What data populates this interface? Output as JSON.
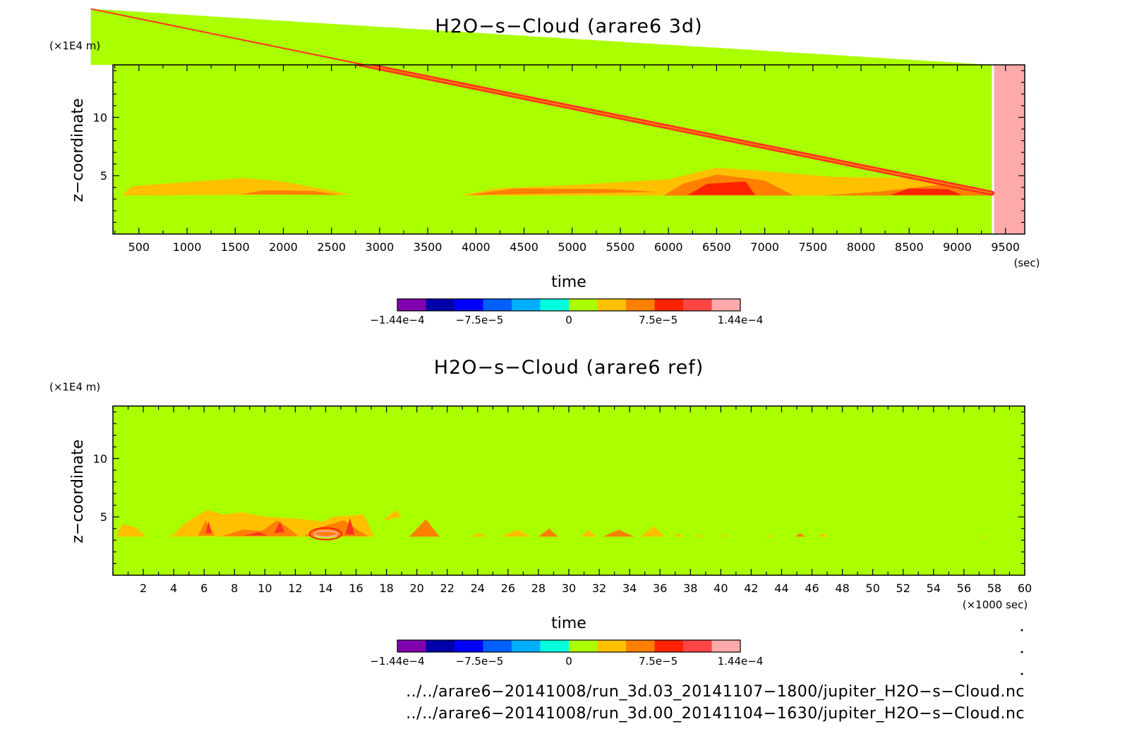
{
  "chart_data": [
    {
      "type": "heatmap",
      "title": "H2O−s−Cloud (arare6 3d)",
      "xlabel": "time",
      "x_unit": "(sec)",
      "ylabel": "z−coordinate",
      "y_unit": "(×1E4 m)",
      "xlim": [
        230,
        9700
      ],
      "ylim": [
        0,
        14.5
      ],
      "x_ticks": [
        500,
        1000,
        1500,
        2000,
        2500,
        3000,
        3500,
        4000,
        4500,
        5000,
        5500,
        6000,
        6500,
        7000,
        7500,
        8000,
        8500,
        9000,
        9500
      ],
      "x_tick_labels": [
        "500",
        "1000",
        "1500",
        "2000",
        "2500",
        "3000",
        "3500",
        "4000",
        "4500",
        "5000",
        "5500",
        "6000",
        "6500",
        "7000",
        "7500",
        "8000",
        "8500",
        "9000",
        "9500"
      ],
      "y_ticks": [
        5,
        10
      ],
      "y_tick_labels": [
        "5",
        "10"
      ],
      "background_color": "#aaff00",
      "missing_region": {
        "x_from": 9370,
        "x_to": 9700,
        "color": "#ffaaaa"
      },
      "streak": {
        "from": [
          0,
          19.3
        ],
        "to": [
          9360,
          3.5
        ],
        "color": "#ff3322"
      },
      "patches": [
        {
          "color": "#ffc000",
          "points": [
            [
              320,
              3.3
            ],
            [
              430,
              4.1
            ],
            [
              900,
              4.4
            ],
            [
              1600,
              4.8
            ],
            [
              2000,
              4.5
            ],
            [
              2700,
              3.4
            ]
          ]
        },
        {
          "color": "#ff7f00",
          "points": [
            [
              1550,
              3.4
            ],
            [
              1800,
              3.75
            ],
            [
              2300,
              3.7
            ],
            [
              2600,
              3.35
            ]
          ]
        },
        {
          "color": "#ffc000",
          "points": [
            [
              3850,
              3.3
            ],
            [
              4200,
              3.9
            ],
            [
              5000,
              4.2
            ],
            [
              6000,
              4.7
            ],
            [
              6500,
              5.7
            ],
            [
              7000,
              5.4
            ],
            [
              7700,
              4.9
            ],
            [
              8600,
              4.8
            ],
            [
              9380,
              3.3
            ]
          ]
        },
        {
          "color": "#ff7f00",
          "points": [
            [
              3900,
              3.35
            ],
            [
              4400,
              3.9
            ],
            [
              5400,
              3.85
            ],
            [
              5900,
              3.6
            ]
          ]
        },
        {
          "color": "#ff7f00",
          "points": [
            [
              5950,
              3.3
            ],
            [
              6150,
              4.3
            ],
            [
              6500,
              5.1
            ],
            [
              7000,
              4.6
            ],
            [
              7300,
              3.3
            ]
          ]
        },
        {
          "color": "#ff2200",
          "points": [
            [
              6200,
              3.35
            ],
            [
              6400,
              4.3
            ],
            [
              6800,
              4.5
            ],
            [
              6900,
              3.35
            ]
          ]
        },
        {
          "color": "#ff7f00",
          "points": [
            [
              7600,
              3.3
            ],
            [
              8200,
              3.65
            ],
            [
              8900,
              4.3
            ],
            [
              9350,
              3.3
            ]
          ]
        },
        {
          "color": "#ff2200",
          "points": [
            [
              8300,
              3.35
            ],
            [
              8500,
              3.9
            ],
            [
              8900,
              3.85
            ],
            [
              9050,
              3.35
            ]
          ]
        }
      ],
      "colorbar": {
        "colors": [
          "#8000b0",
          "#0000aa",
          "#0000ff",
          "#0060ff",
          "#00b0ff",
          "#00ffdd",
          "#aaff00",
          "#ffc000",
          "#ff7f00",
          "#ff2200",
          "#ff4444",
          "#ffaaaa"
        ],
        "tick_labels": [
          "−1.44e−4",
          "−7.5e−5",
          "0",
          "7.5e−5",
          "1.44e−4"
        ],
        "tick_values": [
          -0.000144,
          -7.5e-05,
          0,
          7.5e-05,
          0.000144
        ]
      }
    },
    {
      "type": "heatmap",
      "title": "H2O−s−Cloud (arare6 ref)",
      "xlabel": "time",
      "x_unit": "(×1000 sec)",
      "ylabel": "z−coordinate",
      "y_unit": "(×1E4 m)",
      "xlim": [
        0,
        60
      ],
      "ylim": [
        0,
        14.5
      ],
      "x_ticks": [
        2,
        4,
        6,
        8,
        10,
        12,
        14,
        16,
        18,
        20,
        22,
        24,
        26,
        28,
        30,
        32,
        34,
        36,
        38,
        40,
        42,
        44,
        46,
        48,
        50,
        52,
        54,
        56,
        58,
        60
      ],
      "x_tick_labels": [
        "2",
        "4",
        "6",
        "8",
        "10",
        "12",
        "14",
        "16",
        "18",
        "20",
        "22",
        "24",
        "26",
        "28",
        "30",
        "32",
        "34",
        "36",
        "38",
        "40",
        "42",
        "44",
        "46",
        "48",
        "50",
        "52",
        "54",
        "56",
        "58",
        "60"
      ],
      "y_ticks": [
        5,
        10
      ],
      "y_tick_labels": [
        "5",
        "10"
      ],
      "background_color": "#aaff00",
      "patches": [
        {
          "color": "#ffc000",
          "points": [
            [
              0.2,
              3.3
            ],
            [
              0.6,
              4.4
            ],
            [
              1.5,
              4.1
            ],
            [
              2.2,
              3.3
            ]
          ]
        },
        {
          "color": "#ffc000",
          "points": [
            [
              3.8,
              3.3
            ],
            [
              4.8,
              4.5
            ],
            [
              6.2,
              5.6
            ],
            [
              7.3,
              5.2
            ],
            [
              8.5,
              5.4
            ],
            [
              10.0,
              5.0
            ],
            [
              11.5,
              4.9
            ],
            [
              12.5,
              4.8
            ],
            [
              13.8,
              4.6
            ],
            [
              14.5,
              5.0
            ],
            [
              16.5,
              5.2
            ],
            [
              17.2,
              3.3
            ]
          ]
        },
        {
          "color": "#ff7f00",
          "points": [
            [
              5.6,
              3.4
            ],
            [
              6.1,
              4.7
            ],
            [
              6.7,
              3.4
            ]
          ]
        },
        {
          "color": "#ff7f00",
          "points": [
            [
              7.2,
              3.35
            ],
            [
              8.5,
              3.9
            ],
            [
              9.8,
              3.8
            ],
            [
              10.8,
              4.7
            ],
            [
              11.5,
              4.1
            ],
            [
              12.2,
              3.35
            ]
          ]
        },
        {
          "color": "#ff7f00",
          "points": [
            [
              12.6,
              3.35
            ],
            [
              13.6,
              4.1
            ],
            [
              15.2,
              4.7
            ],
            [
              16.2,
              3.8
            ],
            [
              16.8,
              3.35
            ]
          ]
        },
        {
          "color": "#ffc000",
          "points": [
            [
              17.8,
              4.7
            ],
            [
              18.6,
              5.6
            ],
            [
              19.0,
              5.0
            ]
          ]
        },
        {
          "color": "#ff7f00",
          "points": [
            [
              19.5,
              3.3
            ],
            [
              20.6,
              4.8
            ],
            [
              21.5,
              3.3
            ]
          ]
        },
        {
          "color": "#ffc000",
          "points": [
            [
              23.5,
              3.3
            ],
            [
              24.1,
              3.6
            ],
            [
              24.6,
              3.3
            ]
          ]
        },
        {
          "color": "#ffc000",
          "points": [
            [
              25.5,
              3.3
            ],
            [
              26.6,
              3.9
            ],
            [
              27.5,
              3.3
            ]
          ]
        },
        {
          "color": "#ff7f00",
          "points": [
            [
              28.0,
              3.3
            ],
            [
              28.7,
              4.0
            ],
            [
              29.3,
              3.3
            ]
          ]
        },
        {
          "color": "#ffc000",
          "points": [
            [
              30.8,
              3.3
            ],
            [
              31.3,
              3.9
            ],
            [
              31.8,
              3.3
            ]
          ]
        },
        {
          "color": "#ff7f00",
          "points": [
            [
              32.2,
              3.3
            ],
            [
              33.3,
              3.9
            ],
            [
              34.3,
              3.3
            ]
          ]
        },
        {
          "color": "#ffc000",
          "points": [
            [
              34.7,
              3.3
            ],
            [
              35.6,
              4.2
            ],
            [
              36.3,
              3.3
            ]
          ]
        },
        {
          "color": "#ffc000",
          "points": [
            [
              36.9,
              3.3
            ],
            [
              37.2,
              3.6
            ],
            [
              37.5,
              3.3
            ]
          ]
        },
        {
          "color": "#ffc000",
          "points": [
            [
              38.3,
              3.3
            ],
            [
              38.5,
              3.5
            ],
            [
              38.8,
              3.3
            ]
          ]
        },
        {
          "color": "#ffc000",
          "points": [
            [
              40.1,
              3.3
            ],
            [
              40.3,
              3.5
            ],
            [
              40.5,
              3.3
            ]
          ]
        },
        {
          "color": "#ffc000",
          "points": [
            [
              43.0,
              3.3
            ],
            [
              43.2,
              3.45
            ],
            [
              43.4,
              3.3
            ]
          ]
        },
        {
          "color": "#ff7f00",
          "points": [
            [
              44.9,
              3.3
            ],
            [
              45.2,
              3.6
            ],
            [
              45.6,
              3.3
            ]
          ]
        },
        {
          "color": "#ffc000",
          "points": [
            [
              46.4,
              3.3
            ],
            [
              46.7,
              3.6
            ],
            [
              47.0,
              3.3
            ]
          ]
        },
        {
          "color": "#ffc000",
          "points": [
            [
              57.0,
              3.3
            ],
            [
              57.2,
              3.45
            ],
            [
              57.4,
              3.3
            ]
          ]
        }
      ],
      "small_patches": [
        {
          "color": "#ff3322",
          "points": [
            [
              6.1,
              3.6
            ],
            [
              6.3,
              4.6
            ],
            [
              6.5,
              3.6
            ]
          ]
        },
        {
          "color": "#ff3322",
          "points": [
            [
              10.6,
              3.6
            ],
            [
              11.0,
              4.6
            ],
            [
              11.3,
              3.7
            ]
          ]
        },
        {
          "color": "#ff3322",
          "points": [
            [
              15.3,
              3.5
            ],
            [
              15.6,
              4.9
            ],
            [
              15.9,
              3.5
            ]
          ]
        },
        {
          "color": "#ff3322",
          "points": [
            [
              8.6,
              3.4
            ],
            [
              9.6,
              3.7
            ],
            [
              10.2,
              3.4
            ]
          ]
        }
      ],
      "rings": [
        {
          "color": "#ff2200",
          "center": [
            14.0,
            3.55
          ],
          "rx": 1.05,
          "ry": 0.5
        },
        {
          "color": "#ffaaaa",
          "center": [
            14.0,
            3.55
          ],
          "rx": 0.75,
          "ry": 0.25
        }
      ],
      "colorbar": {
        "colors": [
          "#8000b0",
          "#0000aa",
          "#0000ff",
          "#0060ff",
          "#00b0ff",
          "#00ffdd",
          "#aaff00",
          "#ffc000",
          "#ff7f00",
          "#ff2200",
          "#ff4444",
          "#ffaaaa"
        ],
        "tick_labels": [
          "−1.44e−4",
          "−7.5e−5",
          "0",
          "7.5e−5",
          "1.44e−4"
        ],
        "tick_values": [
          -0.000144,
          -7.5e-05,
          0,
          7.5e-05,
          0.000144
        ]
      }
    }
  ],
  "file_paths": [
    "../../arare6−20141008/run_3d.03_20141107−1800/jupiter_H2O−s−Cloud.nc",
    "../../arare6−20141008/run_3d.00_20141104−1630/jupiter_H2O−s−Cloud.nc"
  ]
}
